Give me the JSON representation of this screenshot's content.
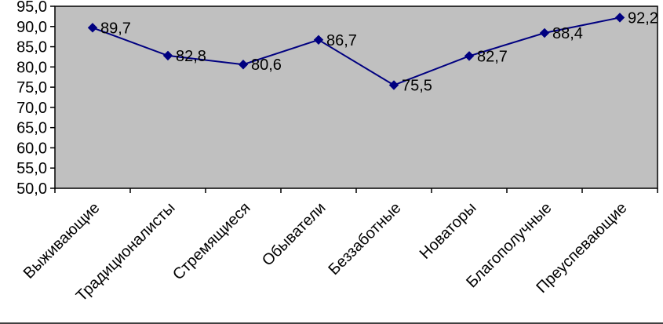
{
  "chart_data": {
    "type": "line",
    "title": "",
    "xlabel": "",
    "ylabel": "",
    "categories": [
      "Выживающие",
      "Традиционалисты",
      "Стремящиеся",
      "Обыватели",
      "Беззаботные",
      "Новаторы",
      "Благополучные",
      "Преуспевающие"
    ],
    "series": [
      {
        "name": "",
        "values": [
          89.7,
          82.8,
          80.6,
          86.7,
          75.5,
          82.7,
          88.4,
          92.2
        ],
        "data_labels": [
          "89,7",
          "82,8",
          "80,6",
          "86,7",
          "75,5",
          "82,7",
          "88,4",
          "92,2"
        ]
      }
    ],
    "ylim": [
      50,
      95
    ],
    "y_ticks": [
      50,
      55,
      60,
      65,
      70,
      75,
      80,
      85,
      90,
      95
    ],
    "y_tick_labels": [
      "50,0",
      "55,0",
      "60,0",
      "65,0",
      "70,0",
      "75,0",
      "80,0",
      "85,0",
      "90,0",
      "95,0"
    ],
    "grid": false,
    "legend": "none",
    "marker": "diamond",
    "colors": {
      "line": "#000080",
      "marker": "#000080",
      "plot_background": "#C0C0C0",
      "border": "#000000",
      "text": "#000000",
      "page_background": "#FFFFFF"
    }
  }
}
